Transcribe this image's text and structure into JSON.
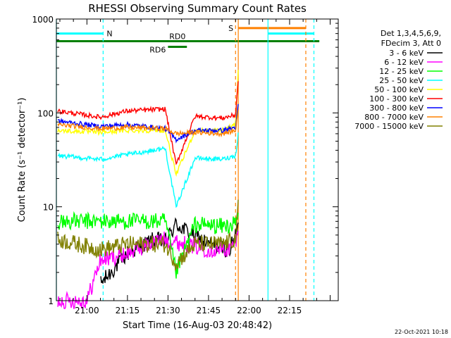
{
  "chart_data": {
    "type": "line",
    "title": "RHESSI Observing Summary Count Rates",
    "xlabel": "Start Time (16-Aug-03 20:48:42)",
    "ylabel": "Count Rate (s⁻¹ detector⁻¹)",
    "yscale": "log",
    "ylim": [
      1,
      1000
    ],
    "xlim": [
      "20:48:42",
      "22:33:00"
    ],
    "x_ticks": [
      "21:00",
      "21:15",
      "21:30",
      "21:45",
      "22:00",
      "22:15"
    ],
    "y_ticks": [
      "1",
      "10",
      "100",
      "1000"
    ],
    "grid": false,
    "legend": {
      "position": "right",
      "header": [
        "Det 1,3,4,5,6,9,",
        "FDecim 3, Att 0"
      ]
    },
    "series": [
      {
        "name": "3 - 6 keV",
        "color": "#000000",
        "x": [
          "21:05",
          "21:15",
          "21:25",
          "21:29",
          "21:33",
          "21:45",
          "21:53",
          "21:55",
          "21:56"
        ],
        "y": [
          1.5,
          3.2,
          4.5,
          4.2,
          6.5,
          4.0,
          3.5,
          5,
          6
        ]
      },
      {
        "name": "6 - 12 keV",
        "color": "#ff00ff",
        "x": [
          "20:49",
          "21:00",
          "21:05",
          "21:15",
          "21:25",
          "21:29",
          "21:33",
          "21:45",
          "21:53",
          "21:55",
          "21:56"
        ],
        "y": [
          1,
          1,
          2.7,
          3.2,
          4.2,
          4.5,
          4.2,
          3.5,
          3.5,
          4.5,
          5
        ]
      },
      {
        "name": "12 - 25 keV",
        "color": "#00ff00",
        "x": [
          "20:49",
          "21:05",
          "21:15",
          "21:29",
          "21:33",
          "21:40",
          "21:50",
          "21:55",
          "21:56"
        ],
        "y": [
          7,
          7,
          7,
          7,
          2.0,
          6.5,
          6.2,
          6.5,
          8
        ]
      },
      {
        "name": "25 - 50 keV",
        "color": "#00ffff",
        "x": [
          "20:49",
          "21:05",
          "21:15",
          "21:29",
          "21:33",
          "21:40",
          "21:50",
          "21:55",
          "21:56"
        ],
        "y": [
          35,
          32,
          36,
          42,
          10,
          33,
          32,
          35,
          60
        ]
      },
      {
        "name": "50 - 100 keV",
        "color": "#ffff00",
        "x": [
          "20:49",
          "21:05",
          "21:15",
          "21:29",
          "21:33",
          "21:40",
          "21:50",
          "21:55",
          "21:56"
        ],
        "y": [
          65,
          62,
          65,
          65,
          22,
          65,
          65,
          75,
          300
        ]
      },
      {
        "name": "100 - 300 keV",
        "color": "#ff0000",
        "x": [
          "20:49",
          "21:05",
          "21:15",
          "21:29",
          "21:33",
          "21:40",
          "21:50",
          "21:55",
          "21:56"
        ],
        "y": [
          105,
          90,
          105,
          110,
          28,
          92,
          88,
          95,
          230
        ]
      },
      {
        "name": "300 - 800 keV",
        "color": "#0000ff",
        "x": [
          "20:49",
          "21:05",
          "21:15",
          "21:29",
          "21:33",
          "21:40",
          "21:50",
          "21:55",
          "21:56"
        ],
        "y": [
          82,
          72,
          75,
          68,
          52,
          65,
          65,
          70,
          120
        ]
      },
      {
        "name": "800 - 7000 keV",
        "color": "#ff8000",
        "x": [
          "20:49",
          "21:05",
          "21:15",
          "21:29",
          "21:33",
          "21:40",
          "21:50",
          "21:55",
          "21:56"
        ],
        "y": [
          75,
          68,
          70,
          68,
          60,
          62,
          60,
          65,
          110
        ]
      },
      {
        "name": "7000 - 15000 keV",
        "color": "#808000",
        "x": [
          "20:49",
          "21:05",
          "21:15",
          "21:29",
          "21:33",
          "21:40",
          "21:50",
          "21:55",
          "21:56"
        ],
        "y": [
          4.5,
          3.5,
          4.0,
          4.0,
          2.5,
          4.0,
          4.0,
          4.5,
          10
        ]
      }
    ],
    "annotations": {
      "bars": [
        {
          "label": "N",
          "color": "#00ffff",
          "from": "20:48:42",
          "to": "21:06",
          "level": 700
        },
        {
          "label": "",
          "color": "#00ffff",
          "from": "22:07",
          "to": "22:24",
          "level": 700
        },
        {
          "label": "S",
          "color": "#ff8000",
          "from": "21:56",
          "to": "22:21",
          "level": 800
        },
        {
          "label": "RD0",
          "color": "#008000",
          "from": "20:48:42",
          "to": "22:26",
          "level": 580
        },
        {
          "label": "RD6",
          "color": "#008000",
          "from": "21:30",
          "to": "21:37",
          "level": 505
        }
      ],
      "vlines": [
        {
          "x": "20:48:42",
          "color": "#00ffff",
          "style": "solid"
        },
        {
          "x": "21:06",
          "color": "#00ffff",
          "style": "dashed"
        },
        {
          "x": "21:55",
          "color": "#ff8000",
          "style": "dashed"
        },
        {
          "x": "21:56",
          "color": "#ff8000",
          "style": "solid"
        },
        {
          "x": "22:07",
          "color": "#00ffff",
          "style": "solid"
        },
        {
          "x": "22:21",
          "color": "#ff8000",
          "style": "dashed"
        },
        {
          "x": "22:24",
          "color": "#00ffff",
          "style": "dashed"
        }
      ]
    }
  },
  "footer": {
    "timestamp": "22-Oct-2021 10:18"
  }
}
